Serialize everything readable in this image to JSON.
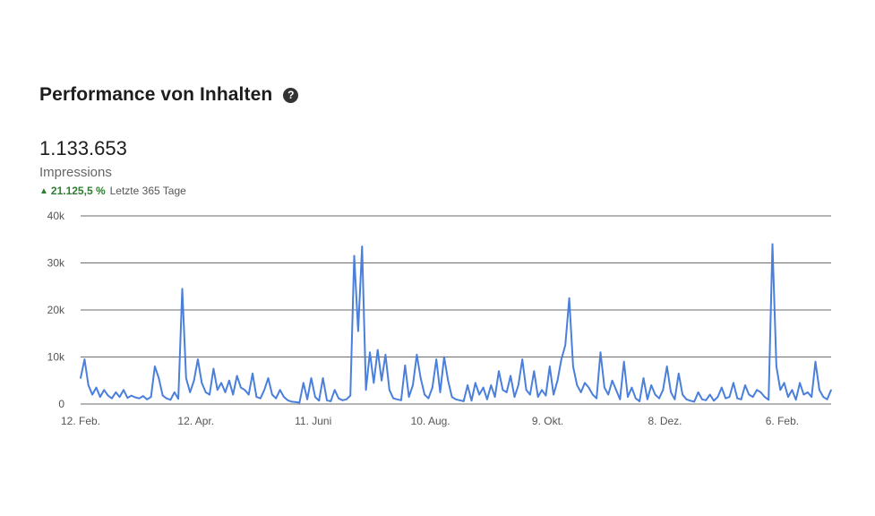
{
  "header": {
    "title": "Performance von Inhalten",
    "help_icon": "question-circle-icon"
  },
  "metric": {
    "value": "1.133.653",
    "label": "Impressions",
    "trend_value": "21.125,5 %",
    "trend_period": "Letzte 365 Tage",
    "trend_direction": "up"
  },
  "colors": {
    "line": "#4a7fdb",
    "grid": "#6b6b6b",
    "trend_up": "#2e7d32"
  },
  "chart_data": {
    "type": "line",
    "title": "",
    "xlabel": "",
    "ylabel": "",
    "ylim": [
      0,
      40000
    ],
    "yticks": [
      0,
      10000,
      20000,
      30000,
      40000
    ],
    "ytick_labels": [
      "0",
      "10k",
      "20k",
      "30k",
      "40k"
    ],
    "xtick_labels": [
      "12. Feb.",
      "12. Apr.",
      "11. Juni",
      "10. Aug.",
      "9. Okt.",
      "8. Dez.",
      "6. Feb."
    ],
    "xtick_days": [
      0,
      59,
      119,
      179,
      239,
      299,
      359
    ],
    "grid": true,
    "series": [
      {
        "points": [
          [
            0,
            5500
          ],
          [
            2,
            9500
          ],
          [
            4,
            4000
          ],
          [
            6,
            2000
          ],
          [
            8,
            3500
          ],
          [
            10,
            1500
          ],
          [
            12,
            3000
          ],
          [
            14,
            1800
          ],
          [
            16,
            1200
          ],
          [
            18,
            2500
          ],
          [
            20,
            1500
          ],
          [
            22,
            3000
          ],
          [
            24,
            1300
          ],
          [
            26,
            1800
          ],
          [
            28,
            1400
          ],
          [
            30,
            1200
          ],
          [
            32,
            1700
          ],
          [
            34,
            1000
          ],
          [
            36,
            1500
          ],
          [
            38,
            8000
          ],
          [
            40,
            5500
          ],
          [
            42,
            1800
          ],
          [
            44,
            1200
          ],
          [
            46,
            900
          ],
          [
            48,
            2500
          ],
          [
            50,
            1100
          ],
          [
            52,
            24500
          ],
          [
            54,
            5500
          ],
          [
            56,
            2500
          ],
          [
            58,
            5000
          ],
          [
            60,
            9500
          ],
          [
            62,
            4500
          ],
          [
            64,
            2500
          ],
          [
            66,
            2000
          ],
          [
            68,
            7500
          ],
          [
            70,
            3000
          ],
          [
            72,
            4500
          ],
          [
            74,
            2500
          ],
          [
            76,
            5000
          ],
          [
            78,
            2000
          ],
          [
            80,
            6000
          ],
          [
            82,
            3500
          ],
          [
            84,
            3000
          ],
          [
            86,
            2000
          ],
          [
            88,
            6500
          ],
          [
            90,
            1500
          ],
          [
            92,
            1200
          ],
          [
            94,
            3000
          ],
          [
            96,
            5500
          ],
          [
            98,
            2000
          ],
          [
            100,
            1200
          ],
          [
            102,
            3000
          ],
          [
            104,
            1500
          ],
          [
            106,
            800
          ],
          [
            108,
            500
          ],
          [
            110,
            400
          ],
          [
            112,
            300
          ],
          [
            114,
            4500
          ],
          [
            116,
            1000
          ],
          [
            118,
            5500
          ],
          [
            120,
            1500
          ],
          [
            122,
            700
          ],
          [
            124,
            5500
          ],
          [
            126,
            800
          ],
          [
            128,
            600
          ],
          [
            130,
            3000
          ],
          [
            132,
            1200
          ],
          [
            134,
            800
          ],
          [
            136,
            1000
          ],
          [
            138,
            1800
          ],
          [
            140,
            31500
          ],
          [
            142,
            15500
          ],
          [
            144,
            33500
          ],
          [
            146,
            3000
          ],
          [
            148,
            11000
          ],
          [
            150,
            4500
          ],
          [
            152,
            11500
          ],
          [
            154,
            5000
          ],
          [
            156,
            10500
          ],
          [
            158,
            3000
          ],
          [
            160,
            1200
          ],
          [
            162,
            1000
          ],
          [
            164,
            800
          ],
          [
            166,
            8200
          ],
          [
            168,
            1500
          ],
          [
            170,
            4000
          ],
          [
            172,
            10500
          ],
          [
            174,
            5500
          ],
          [
            176,
            2000
          ],
          [
            178,
            1200
          ],
          [
            180,
            3500
          ],
          [
            182,
            9500
          ],
          [
            184,
            2500
          ],
          [
            186,
            10000
          ],
          [
            188,
            5000
          ],
          [
            190,
            1500
          ],
          [
            192,
            1000
          ],
          [
            194,
            800
          ],
          [
            196,
            600
          ],
          [
            198,
            4000
          ],
          [
            200,
            700
          ],
          [
            202,
            4500
          ],
          [
            204,
            2000
          ],
          [
            206,
            3500
          ],
          [
            208,
            1000
          ],
          [
            210,
            4000
          ],
          [
            212,
            1500
          ],
          [
            214,
            7000
          ],
          [
            216,
            3000
          ],
          [
            218,
            2500
          ],
          [
            220,
            6000
          ],
          [
            222,
            1500
          ],
          [
            224,
            4000
          ],
          [
            226,
            9500
          ],
          [
            228,
            3000
          ],
          [
            230,
            2000
          ],
          [
            232,
            7000
          ],
          [
            234,
            1500
          ],
          [
            236,
            3000
          ],
          [
            238,
            1800
          ],
          [
            240,
            8000
          ],
          [
            242,
            2000
          ],
          [
            244,
            5000
          ],
          [
            246,
            9500
          ],
          [
            248,
            12500
          ],
          [
            250,
            22500
          ],
          [
            252,
            8000
          ],
          [
            254,
            4000
          ],
          [
            256,
            2500
          ],
          [
            258,
            4500
          ],
          [
            260,
            3500
          ],
          [
            262,
            2000
          ],
          [
            264,
            1200
          ],
          [
            266,
            11000
          ],
          [
            268,
            3500
          ],
          [
            270,
            2000
          ],
          [
            272,
            5000
          ],
          [
            274,
            3000
          ],
          [
            276,
            1000
          ],
          [
            278,
            9000
          ],
          [
            280,
            1500
          ],
          [
            282,
            3500
          ],
          [
            284,
            1200
          ],
          [
            286,
            600
          ],
          [
            288,
            5500
          ],
          [
            290,
            1000
          ],
          [
            292,
            4000
          ],
          [
            294,
            2000
          ],
          [
            296,
            1200
          ],
          [
            298,
            3000
          ],
          [
            300,
            8000
          ],
          [
            302,
            2500
          ],
          [
            304,
            1000
          ],
          [
            306,
            6500
          ],
          [
            308,
            2000
          ],
          [
            310,
            1000
          ],
          [
            312,
            700
          ],
          [
            314,
            500
          ],
          [
            316,
            2500
          ],
          [
            318,
            1000
          ],
          [
            320,
            800
          ],
          [
            322,
            2000
          ],
          [
            324,
            700
          ],
          [
            326,
            1500
          ],
          [
            328,
            3500
          ],
          [
            330,
            1200
          ],
          [
            332,
            1500
          ],
          [
            334,
            4500
          ],
          [
            336,
            1200
          ],
          [
            338,
            1000
          ],
          [
            340,
            4000
          ],
          [
            342,
            2000
          ],
          [
            344,
            1500
          ],
          [
            346,
            3000
          ],
          [
            348,
            2500
          ],
          [
            350,
            1500
          ],
          [
            352,
            900
          ],
          [
            354,
            34000
          ],
          [
            356,
            8000
          ],
          [
            358,
            3000
          ],
          [
            360,
            4500
          ],
          [
            362,
            1500
          ],
          [
            364,
            3000
          ],
          [
            366,
            900
          ],
          [
            368,
            4500
          ],
          [
            370,
            2000
          ],
          [
            372,
            2500
          ],
          [
            374,
            1500
          ],
          [
            376,
            9000
          ],
          [
            378,
            3000
          ],
          [
            380,
            1500
          ],
          [
            382,
            1000
          ],
          [
            384,
            3000
          ]
        ]
      }
    ]
  }
}
